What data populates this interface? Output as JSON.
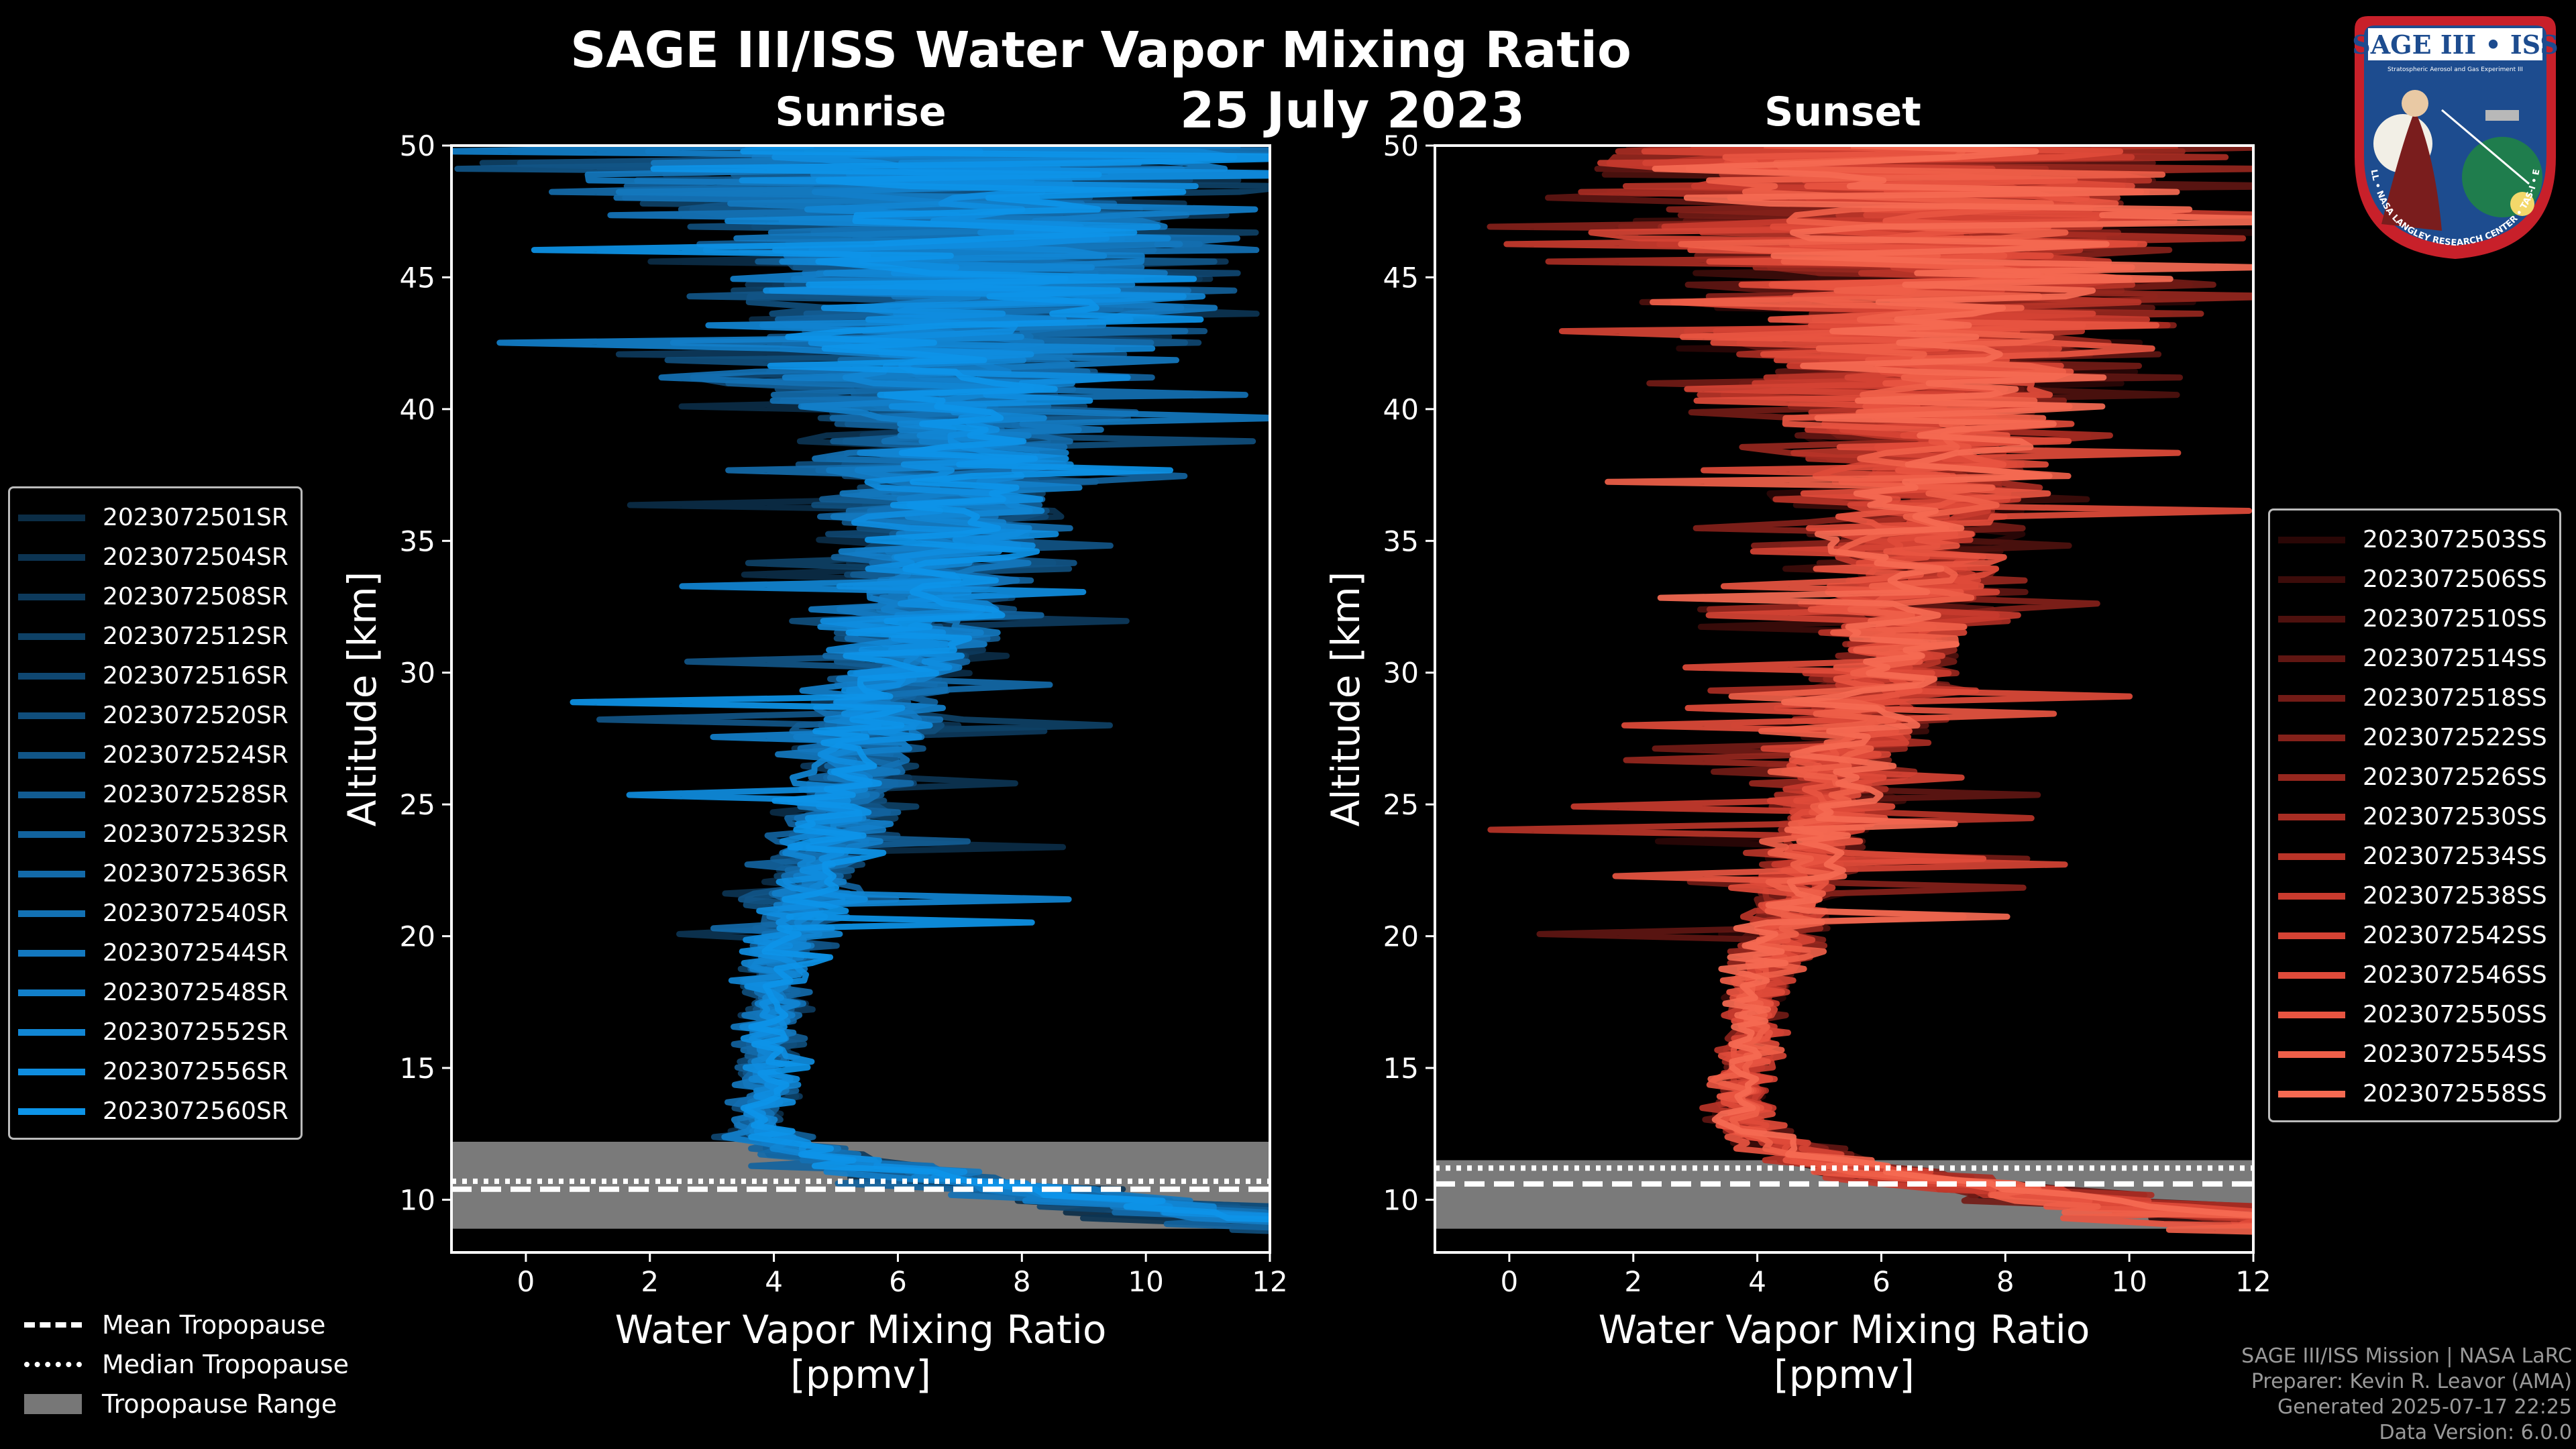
{
  "title": "SAGE III/ISS Water Vapor Mixing Ratio",
  "date": "25 July 2023",
  "panels": [
    {
      "subtitle": "Sunrise",
      "xlabel_line1": "Water Vapor Mixing Ratio",
      "xlabel_line2": "[ppmv]",
      "ylabel": "Altitude [km]",
      "color": "#0a84c8"
    },
    {
      "subtitle": "Sunset",
      "xlabel_line1": "Water Vapor Mixing Ratio",
      "xlabel_line2": "[ppmv]",
      "ylabel": "Altitude [km]",
      "color": "#e8574a"
    }
  ],
  "chart_data": [
    {
      "type": "line",
      "title": "Sunrise",
      "xlabel": "Water Vapor Mixing Ratio [ppmv]",
      "ylabel": "Altitude [km]",
      "xlim": [
        -1.2,
        12
      ],
      "ylim": [
        8,
        50
      ],
      "xticks": [
        "0",
        "2",
        "4",
        "6",
        "8",
        "10",
        "12"
      ],
      "yticks": [
        "10",
        "15",
        "20",
        "25",
        "30",
        "35",
        "40",
        "45",
        "50"
      ],
      "grid": false,
      "legend_position": "left",
      "series": [
        "2023072501SR",
        "2023072504SR",
        "2023072508SR",
        "2023072512SR",
        "2023072516SR",
        "2023072520SR",
        "2023072524SR",
        "2023072528SR",
        "2023072532SR",
        "2023072536SR",
        "2023072540SR",
        "2023072544SR",
        "2023072548SR",
        "2023072552SR",
        "2023072556SR",
        "2023072560SR"
      ],
      "series_colors": [
        "#0b2d46",
        "#0c3452",
        "#0d3a5c",
        "#0e4166",
        "#0f4771",
        "#104e7c",
        "#115587",
        "#125c92",
        "#12639e",
        "#136aa9",
        "#1371b4",
        "#1378bf",
        "#127fca",
        "#1186d4",
        "#0f8ddf",
        "#0d94e8"
      ],
      "tropopause": {
        "mean_km": 10.4,
        "median_km": 10.7,
        "range_km": [
          8.9,
          12.2
        ]
      }
    },
    {
      "type": "line",
      "title": "Sunset",
      "xlabel": "Water Vapor Mixing Ratio [ppmv]",
      "ylabel": "Altitude [km]",
      "xlim": [
        -1.2,
        12
      ],
      "ylim": [
        8,
        50
      ],
      "xticks": [
        "0",
        "2",
        "4",
        "6",
        "8",
        "10",
        "12"
      ],
      "yticks": [
        "10",
        "15",
        "20",
        "25",
        "30",
        "35",
        "40",
        "45",
        "50"
      ],
      "grid": false,
      "legend_position": "right",
      "series": [
        "2023072503SS",
        "2023072506SS",
        "2023072510SS",
        "2023072514SS",
        "2023072518SS",
        "2023072522SS",
        "2023072526SS",
        "2023072530SS",
        "2023072534SS",
        "2023072538SS",
        "2023072542SS",
        "2023072546SS",
        "2023072550SS",
        "2023072554SS",
        "2023072558SS"
      ],
      "series_colors": [
        "#2a0706",
        "#3c0c0a",
        "#4e110e",
        "#601612",
        "#721b16",
        "#84211a",
        "#96271e",
        "#a82d23",
        "#b93428",
        "#c83b2e",
        "#d54334",
        "#df4b3a",
        "#e85541",
        "#ef5f49",
        "#f56a52"
      ],
      "tropopause": {
        "mean_km": 10.6,
        "median_km": 11.2,
        "range_km": [
          8.9,
          11.5
        ]
      }
    }
  ],
  "bottom_legend": {
    "mean": "Mean Tropopause",
    "median": "Median Tropopause",
    "range": "Tropopause Range"
  },
  "credits": {
    "line1": "SAGE III/ISS Mission | NASA LaRC",
    "line2": "Preparer: Kevin R. Leavor (AMA)",
    "line3": "Generated 2025-07-17 22:25",
    "line4": "Data Version: 6.0.0"
  },
  "logo": {
    "top_text": "SAGE III • ISS",
    "sub_text": "Stratospheric Aerosol and Gas Experiment III",
    "ring_text": "BALL • NASA LANGLEY RESEARCH CENTER • TAS-I • ESA"
  }
}
